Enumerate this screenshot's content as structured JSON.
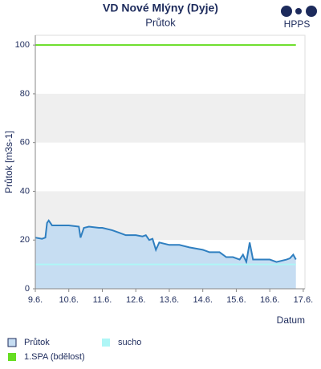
{
  "chart_data": {
    "type": "area",
    "title": "VD Nové Mlýny (Dyje)",
    "subtitle": "Průtok",
    "logo_text": "HPPS",
    "y_label": "Průtok [m3s-1]",
    "x_label": "Datum",
    "xlim": [
      0,
      8.05
    ],
    "xticks": [
      {
        "value": 0,
        "label": "9.6."
      },
      {
        "value": 1,
        "label": "10.6."
      },
      {
        "value": 2,
        "label": "11.6."
      },
      {
        "value": 3,
        "label": "12.6."
      },
      {
        "value": 4,
        "label": "13.6."
      },
      {
        "value": 5,
        "label": "14.6."
      },
      {
        "value": 6,
        "label": "15.6."
      },
      {
        "value": 7,
        "label": "16.6."
      },
      {
        "value": 8,
        "label": "17.6."
      }
    ],
    "ylim": [
      0,
      104
    ],
    "yticks": [
      0,
      20,
      40,
      60,
      80,
      100
    ],
    "bands": true,
    "series": [
      {
        "name": "Průtok",
        "color": "#2f7fc0",
        "fill": "#c6ddf2",
        "x": [
          0,
          0.2,
          0.3,
          0.35,
          0.4,
          0.5,
          0.7,
          1.0,
          1.3,
          1.35,
          1.45,
          1.6,
          1.9,
          2.0,
          2.3,
          2.5,
          2.7,
          3.0,
          3.2,
          3.3,
          3.4,
          3.5,
          3.6,
          3.7,
          4.0,
          4.3,
          4.6,
          5.0,
          5.2,
          5.5,
          5.6,
          5.7,
          5.9,
          6.1,
          6.2,
          6.3,
          6.4,
          6.5,
          6.8,
          7.0,
          7.2,
          7.5,
          7.6,
          7.7,
          7.78
        ],
        "values": [
          21,
          20.5,
          21,
          27,
          28,
          26,
          26,
          26,
          25.5,
          21,
          25,
          25.5,
          25,
          25,
          24,
          23,
          22,
          22,
          21.5,
          22,
          20,
          20.5,
          16,
          19,
          18,
          18,
          17,
          16,
          15,
          15,
          14,
          13,
          13,
          12,
          14,
          11,
          19,
          12,
          12,
          12,
          11,
          12,
          12.5,
          14,
          12
        ]
      },
      {
        "name": "sucho",
        "color": "#aef6f6",
        "x": [
          0,
          7.78
        ],
        "values": [
          10,
          10
        ]
      },
      {
        "name": "1.SPA (bdělost)",
        "color": "#66dd22",
        "x": [
          0,
          7.78
        ],
        "values": [
          100,
          100
        ]
      }
    ]
  }
}
